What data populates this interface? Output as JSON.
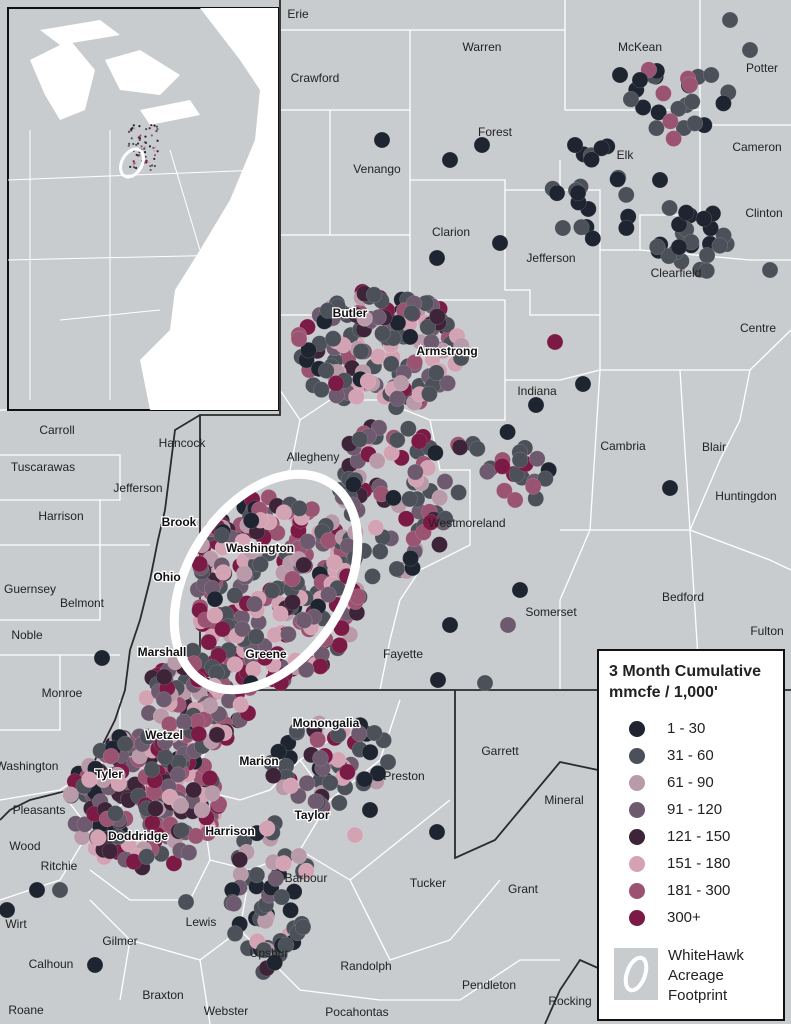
{
  "map": {
    "places": [
      "Erie",
      "Warren",
      "McKean",
      "Potter",
      "Crawford",
      "Forest",
      "Cameron",
      "Elk",
      "Venango",
      "Clinton",
      "Clarion",
      "Jefferson",
      "Clearfield",
      "Butler",
      "Centre",
      "Armstrong",
      "Indiana",
      "Carroll",
      "Hancock",
      "Cambria",
      "Blair",
      "Allegheny",
      "Tuscarawas",
      "Jefferson",
      "Huntingdon",
      "Harrison",
      "Brook",
      "Westmoreland",
      "Washington",
      "Ohio",
      "Guernsey",
      "Belmont",
      "Somerset",
      "Bedford",
      "Noble",
      "Fulton",
      "Marshall",
      "Greene",
      "Fayette",
      "Monroe",
      "Monongalia",
      "Wetzel",
      "Garrett",
      "Marion",
      "Washington",
      "Tyler",
      "Preston",
      "Mineral",
      "Pleasants",
      "Taylor",
      "Doddridge",
      "Harrison",
      "Wood",
      "Ritchie",
      "Barbour",
      "Tucker",
      "Grant",
      "Lewis",
      "Wirt",
      "Gilmer",
      "Upshur",
      "Calhoun",
      "Randolph",
      "Pendleton",
      "Braxton",
      "Rocking",
      "Roane",
      "Webster",
      "Pocahontas"
    ],
    "legend": {
      "title": [
        "3 Month Cumulative",
        "mmcfe / 1,000'"
      ],
      "entries": [
        {
          "label": "1 - 30",
          "color": "#1e2430"
        },
        {
          "label": "31 - 60",
          "color": "#4b5059"
        },
        {
          "label": "61 - 90",
          "color": "#b99aa8"
        },
        {
          "label": "91 - 120",
          "color": "#6e5a6e"
        },
        {
          "label": "121 - 150",
          "color": "#3d2438"
        },
        {
          "label": "151 - 180",
          "color": "#d4a3b3"
        },
        {
          "label": "181 - 300",
          "color": "#9a5370"
        },
        {
          "label": "300+",
          "color": "#7a1a45"
        }
      ],
      "footprint": [
        "WhiteHawk",
        "Acreage",
        "Footprint"
      ]
    }
  }
}
